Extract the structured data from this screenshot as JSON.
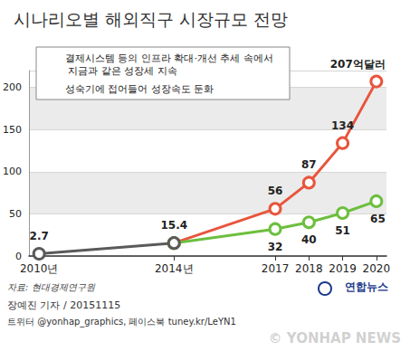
{
  "chart_data": {
    "type": "line",
    "title": "시나리오별 해외직구 시장규모 전망",
    "x": [
      2010,
      2014,
      2017,
      2018,
      2019,
      2020
    ],
    "xlim": [
      2009.7,
      2020.3
    ],
    "xticks": [
      {
        "value": 2010,
        "label": "2010년"
      },
      {
        "value": 2014,
        "label": "2014년"
      },
      2017,
      2018,
      2019,
      2020
    ],
    "ylim": [
      0,
      220
    ],
    "yticks": [
      0,
      50,
      100,
      150,
      200
    ],
    "grid": true,
    "legend": "upper left",
    "data_labels": true,
    "series": [
      {
        "color": "#5a5a5a",
        "marker": "circle",
        "values": [
          2.7,
          15.4,
          null,
          null,
          null,
          null
        ]
      },
      {
        "name": "결제시스템 등의 인프라 확대·개선 추세 속에서 지금과 같은 성장세 지속",
        "color": "#e8553d",
        "marker": "circle",
        "values": [
          null,
          15.4,
          56,
          87,
          134,
          207
        ],
        "value_labels": [
          null,
          null,
          "56",
          "87",
          "134",
          "207억달러"
        ]
      },
      {
        "name": "성숙기에 접어들어 성장속도 둔화",
        "color": "#6cbf3e",
        "marker": "circle",
        "values": [
          null,
          15.4,
          32,
          40,
          51,
          65
        ],
        "value_labels": [
          null,
          null,
          "32",
          "40",
          "51",
          "65"
        ]
      }
    ],
    "source": "자료: 현대경제연구원",
    "credit": "장예진 기자 / 20151115",
    "footer": "트위터 @yonhap_graphics, 페이스북 tuney.kr/LeYN1",
    "logo": "연합뉴스",
    "watermark": "© YONHAP NEWS"
  }
}
